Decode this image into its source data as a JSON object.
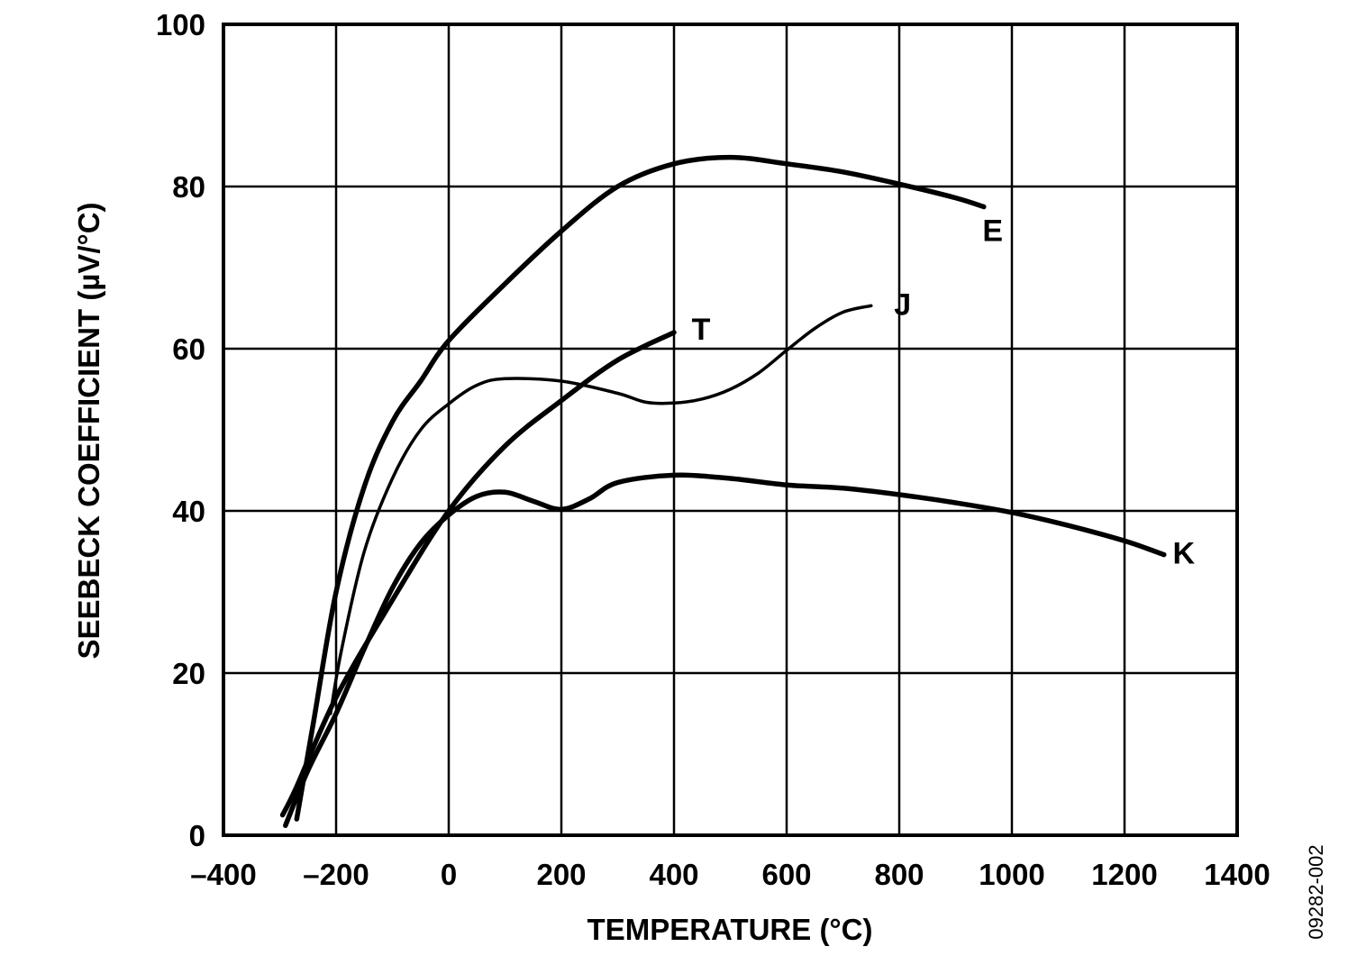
{
  "chart_data": {
    "type": "line",
    "xlabel": "TEMPERATURE (°C)",
    "ylabel": "SEEBECK COEFFICIENT (µV/°C)",
    "xlim": [
      -400,
      1400
    ],
    "ylim": [
      0,
      100
    ],
    "xticks": [
      -400,
      -200,
      0,
      200,
      400,
      600,
      800,
      1000,
      1200,
      1400
    ],
    "yticks": [
      0,
      20,
      40,
      60,
      80,
      100
    ],
    "xtick_labels": [
      "–400",
      "–200",
      "0",
      "200",
      "400",
      "600",
      "800",
      "1000",
      "1200",
      "1400"
    ],
    "ytick_labels": [
      "0",
      "20",
      "40",
      "60",
      "80",
      "100"
    ],
    "grid": true,
    "figure_id": "09282-002",
    "series": [
      {
        "name": "E",
        "line_weight": "heavy",
        "points": [
          [
            -270,
            2
          ],
          [
            -240,
            14
          ],
          [
            -200,
            30
          ],
          [
            -150,
            43
          ],
          [
            -100,
            51
          ],
          [
            -50,
            56
          ],
          [
            0,
            61
          ],
          [
            100,
            68
          ],
          [
            200,
            74.5
          ],
          [
            300,
            80
          ],
          [
            400,
            82.8
          ],
          [
            500,
            83.6
          ],
          [
            600,
            82.8
          ],
          [
            700,
            81.8
          ],
          [
            800,
            80.3
          ],
          [
            900,
            78.6
          ],
          [
            950,
            77.5
          ]
        ]
      },
      {
        "name": "J",
        "line_weight": "light",
        "points": [
          [
            -210,
            15
          ],
          [
            -190,
            23
          ],
          [
            -150,
            35
          ],
          [
            -100,
            44
          ],
          [
            -50,
            50
          ],
          [
            0,
            53.2
          ],
          [
            50,
            55.5
          ],
          [
            100,
            56.3
          ],
          [
            200,
            56
          ],
          [
            300,
            54.5
          ],
          [
            350,
            53.4
          ],
          [
            400,
            53.3
          ],
          [
            450,
            53.8
          ],
          [
            500,
            55
          ],
          [
            550,
            57
          ],
          [
            600,
            59.8
          ],
          [
            650,
            62.5
          ],
          [
            700,
            64.5
          ],
          [
            750,
            65.3
          ]
        ]
      },
      {
        "name": "T",
        "line_weight": "heavy",
        "points": [
          [
            -295,
            2.5
          ],
          [
            -270,
            6
          ],
          [
            -200,
            17
          ],
          [
            -100,
            29
          ],
          [
            0,
            40
          ],
          [
            100,
            48
          ],
          [
            200,
            53.6
          ],
          [
            300,
            58.6
          ],
          [
            400,
            62
          ]
        ]
      },
      {
        "name": "K",
        "line_weight": "heavy",
        "points": [
          [
            -290,
            1.2
          ],
          [
            -250,
            8
          ],
          [
            -200,
            15
          ],
          [
            -150,
            23
          ],
          [
            -100,
            30.5
          ],
          [
            -50,
            36
          ],
          [
            0,
            39.5
          ],
          [
            50,
            41.8
          ],
          [
            100,
            42.3
          ],
          [
            150,
            41.2
          ],
          [
            200,
            40.2
          ],
          [
            250,
            41.5
          ],
          [
            300,
            43.5
          ],
          [
            400,
            44.4
          ],
          [
            500,
            44
          ],
          [
            600,
            43.2
          ],
          [
            700,
            42.8
          ],
          [
            800,
            42
          ],
          [
            900,
            41
          ],
          [
            1000,
            39.8
          ],
          [
            1100,
            38.2
          ],
          [
            1200,
            36.3
          ],
          [
            1270,
            34.6
          ]
        ]
      }
    ]
  }
}
